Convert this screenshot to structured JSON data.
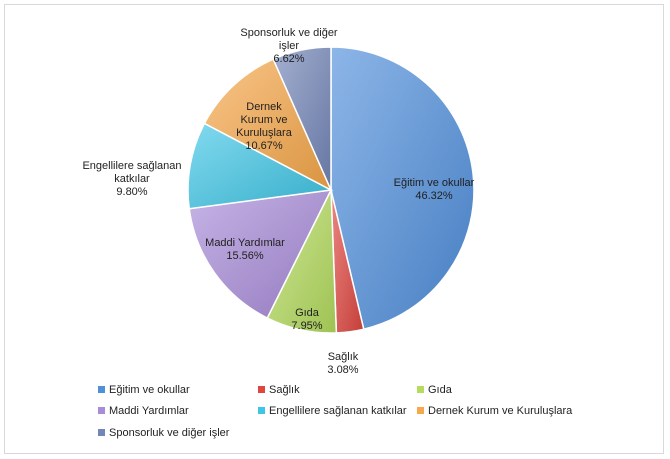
{
  "chart_data": {
    "type": "pie",
    "title": "",
    "legend_position": "bottom",
    "slices": [
      {
        "name": "Eğitim ve okullar",
        "value": 46.32,
        "label": "46.32%",
        "label_lines": [
          "Eğitim ve okullar"
        ],
        "color": "#4f8fdc"
      },
      {
        "name": "Sağlık",
        "value": 3.08,
        "label": "3.08%",
        "label_lines": [
          "Sağlık"
        ],
        "color": "#e04640"
      },
      {
        "name": "Gıda",
        "value": 7.95,
        "label": "7.95%",
        "label_lines": [
          "Gıda"
        ],
        "color": "#b5dc5e"
      },
      {
        "name": "Maddi Yardımlar",
        "value": 15.56,
        "label": "15.56%",
        "label_lines": [
          "Maddi Yardımlar"
        ],
        "color": "#a88bd9"
      },
      {
        "name": "Engellilere sağlanan katkılar",
        "value": 9.8,
        "label": "9.80%",
        "label_lines": [
          "Engellilere sağlanan",
          "katkılar"
        ],
        "color": "#3fc6e6"
      },
      {
        "name": "Dernek Kurum ve Kuruluşlara",
        "value": 10.67,
        "label": "10.67%",
        "label_lines": [
          "Dernek",
          "Kurum ve",
          "Kuruluşlara"
        ],
        "color": "#f7a84a"
      },
      {
        "name": "Sponsorluk ve diğer işler",
        "value": 6.62,
        "label": "6.62%",
        "label_lines": [
          "Sponsorluk ve diğer",
          "işler"
        ],
        "color": "#7386b8"
      }
    ]
  }
}
